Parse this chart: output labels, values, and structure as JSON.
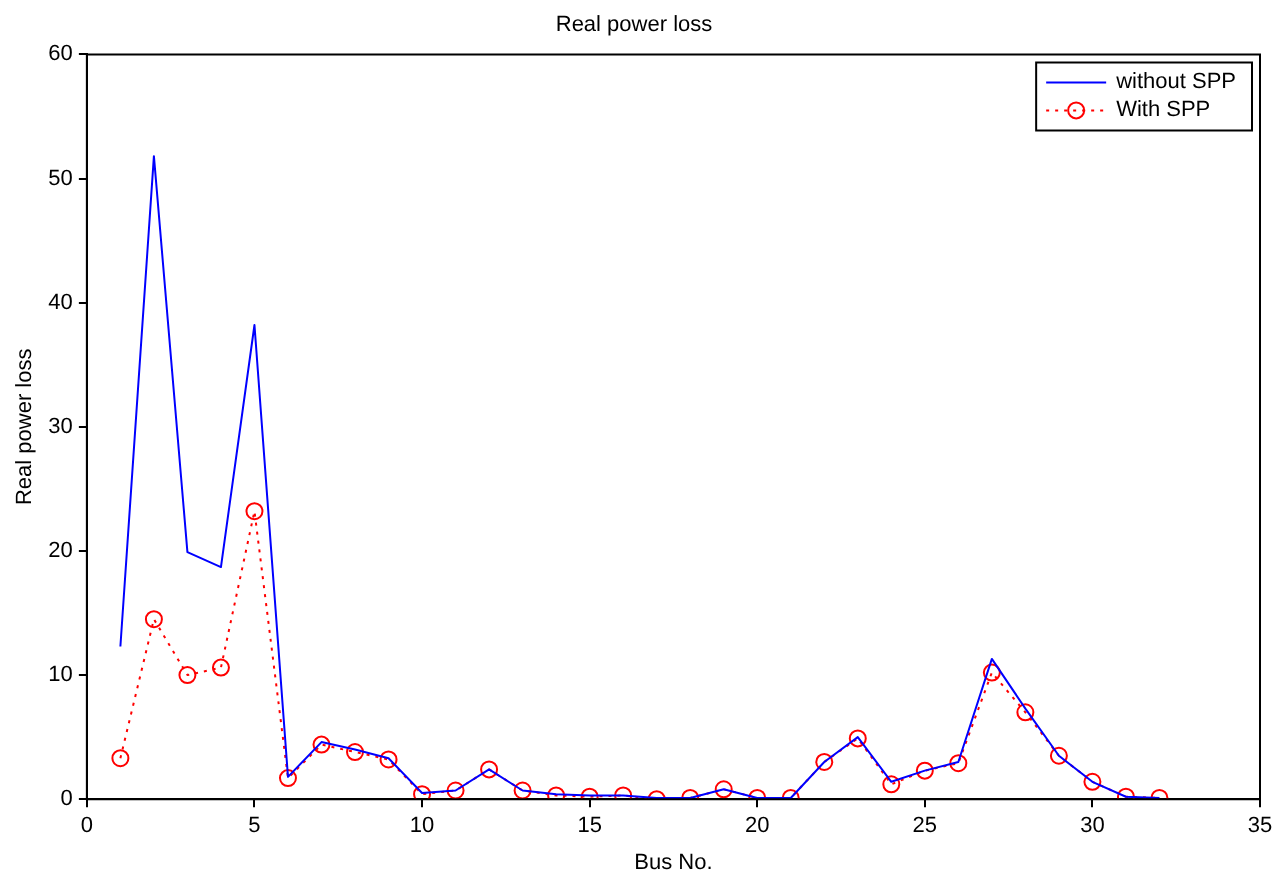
{
  "chart_data": {
    "type": "line",
    "title": "Real power loss",
    "xlabel": "Bus No.",
    "ylabel": "Real power loss",
    "x": [
      1,
      2,
      3,
      4,
      5,
      6,
      7,
      8,
      9,
      10,
      11,
      12,
      13,
      14,
      15,
      16,
      17,
      18,
      19,
      20,
      21,
      22,
      23,
      24,
      25,
      26,
      27,
      28,
      29,
      30,
      31,
      32
    ],
    "series": [
      {
        "name": "without SPP",
        "color": "#0000ff",
        "marker": "none",
        "line_style": "solid",
        "values": [
          12.3,
          51.8,
          19.9,
          18.7,
          38.2,
          1.8,
          4.6,
          4.0,
          3.3,
          0.5,
          0.7,
          2.4,
          0.7,
          0.4,
          0.3,
          0.3,
          0.1,
          0.1,
          0.8,
          0.1,
          0.1,
          3.0,
          5.0,
          1.4,
          2.3,
          3.0,
          11.3,
          7.3,
          3.5,
          1.4,
          0.2,
          0.1
        ]
      },
      {
        "name": "With SPP",
        "color": "#ff0000",
        "marker": "circle",
        "line_style": "dotted",
        "values": [
          3.3,
          14.5,
          10.0,
          10.6,
          23.2,
          1.7,
          4.4,
          3.8,
          3.2,
          0.4,
          0.7,
          2.4,
          0.7,
          0.3,
          0.2,
          0.3,
          0.0,
          0.1,
          0.8,
          0.1,
          0.1,
          3.0,
          4.9,
          1.2,
          2.3,
          2.9,
          10.2,
          7.0,
          3.5,
          1.4,
          0.2,
          0.1
        ]
      }
    ],
    "xlim": [
      0,
      35
    ],
    "xticks": [
      0,
      5,
      10,
      15,
      20,
      25,
      30,
      35
    ],
    "ylim": [
      0,
      60
    ],
    "yticks": [
      0,
      10,
      20,
      30,
      40,
      50,
      60
    ],
    "grid": false,
    "legend": "top right"
  }
}
